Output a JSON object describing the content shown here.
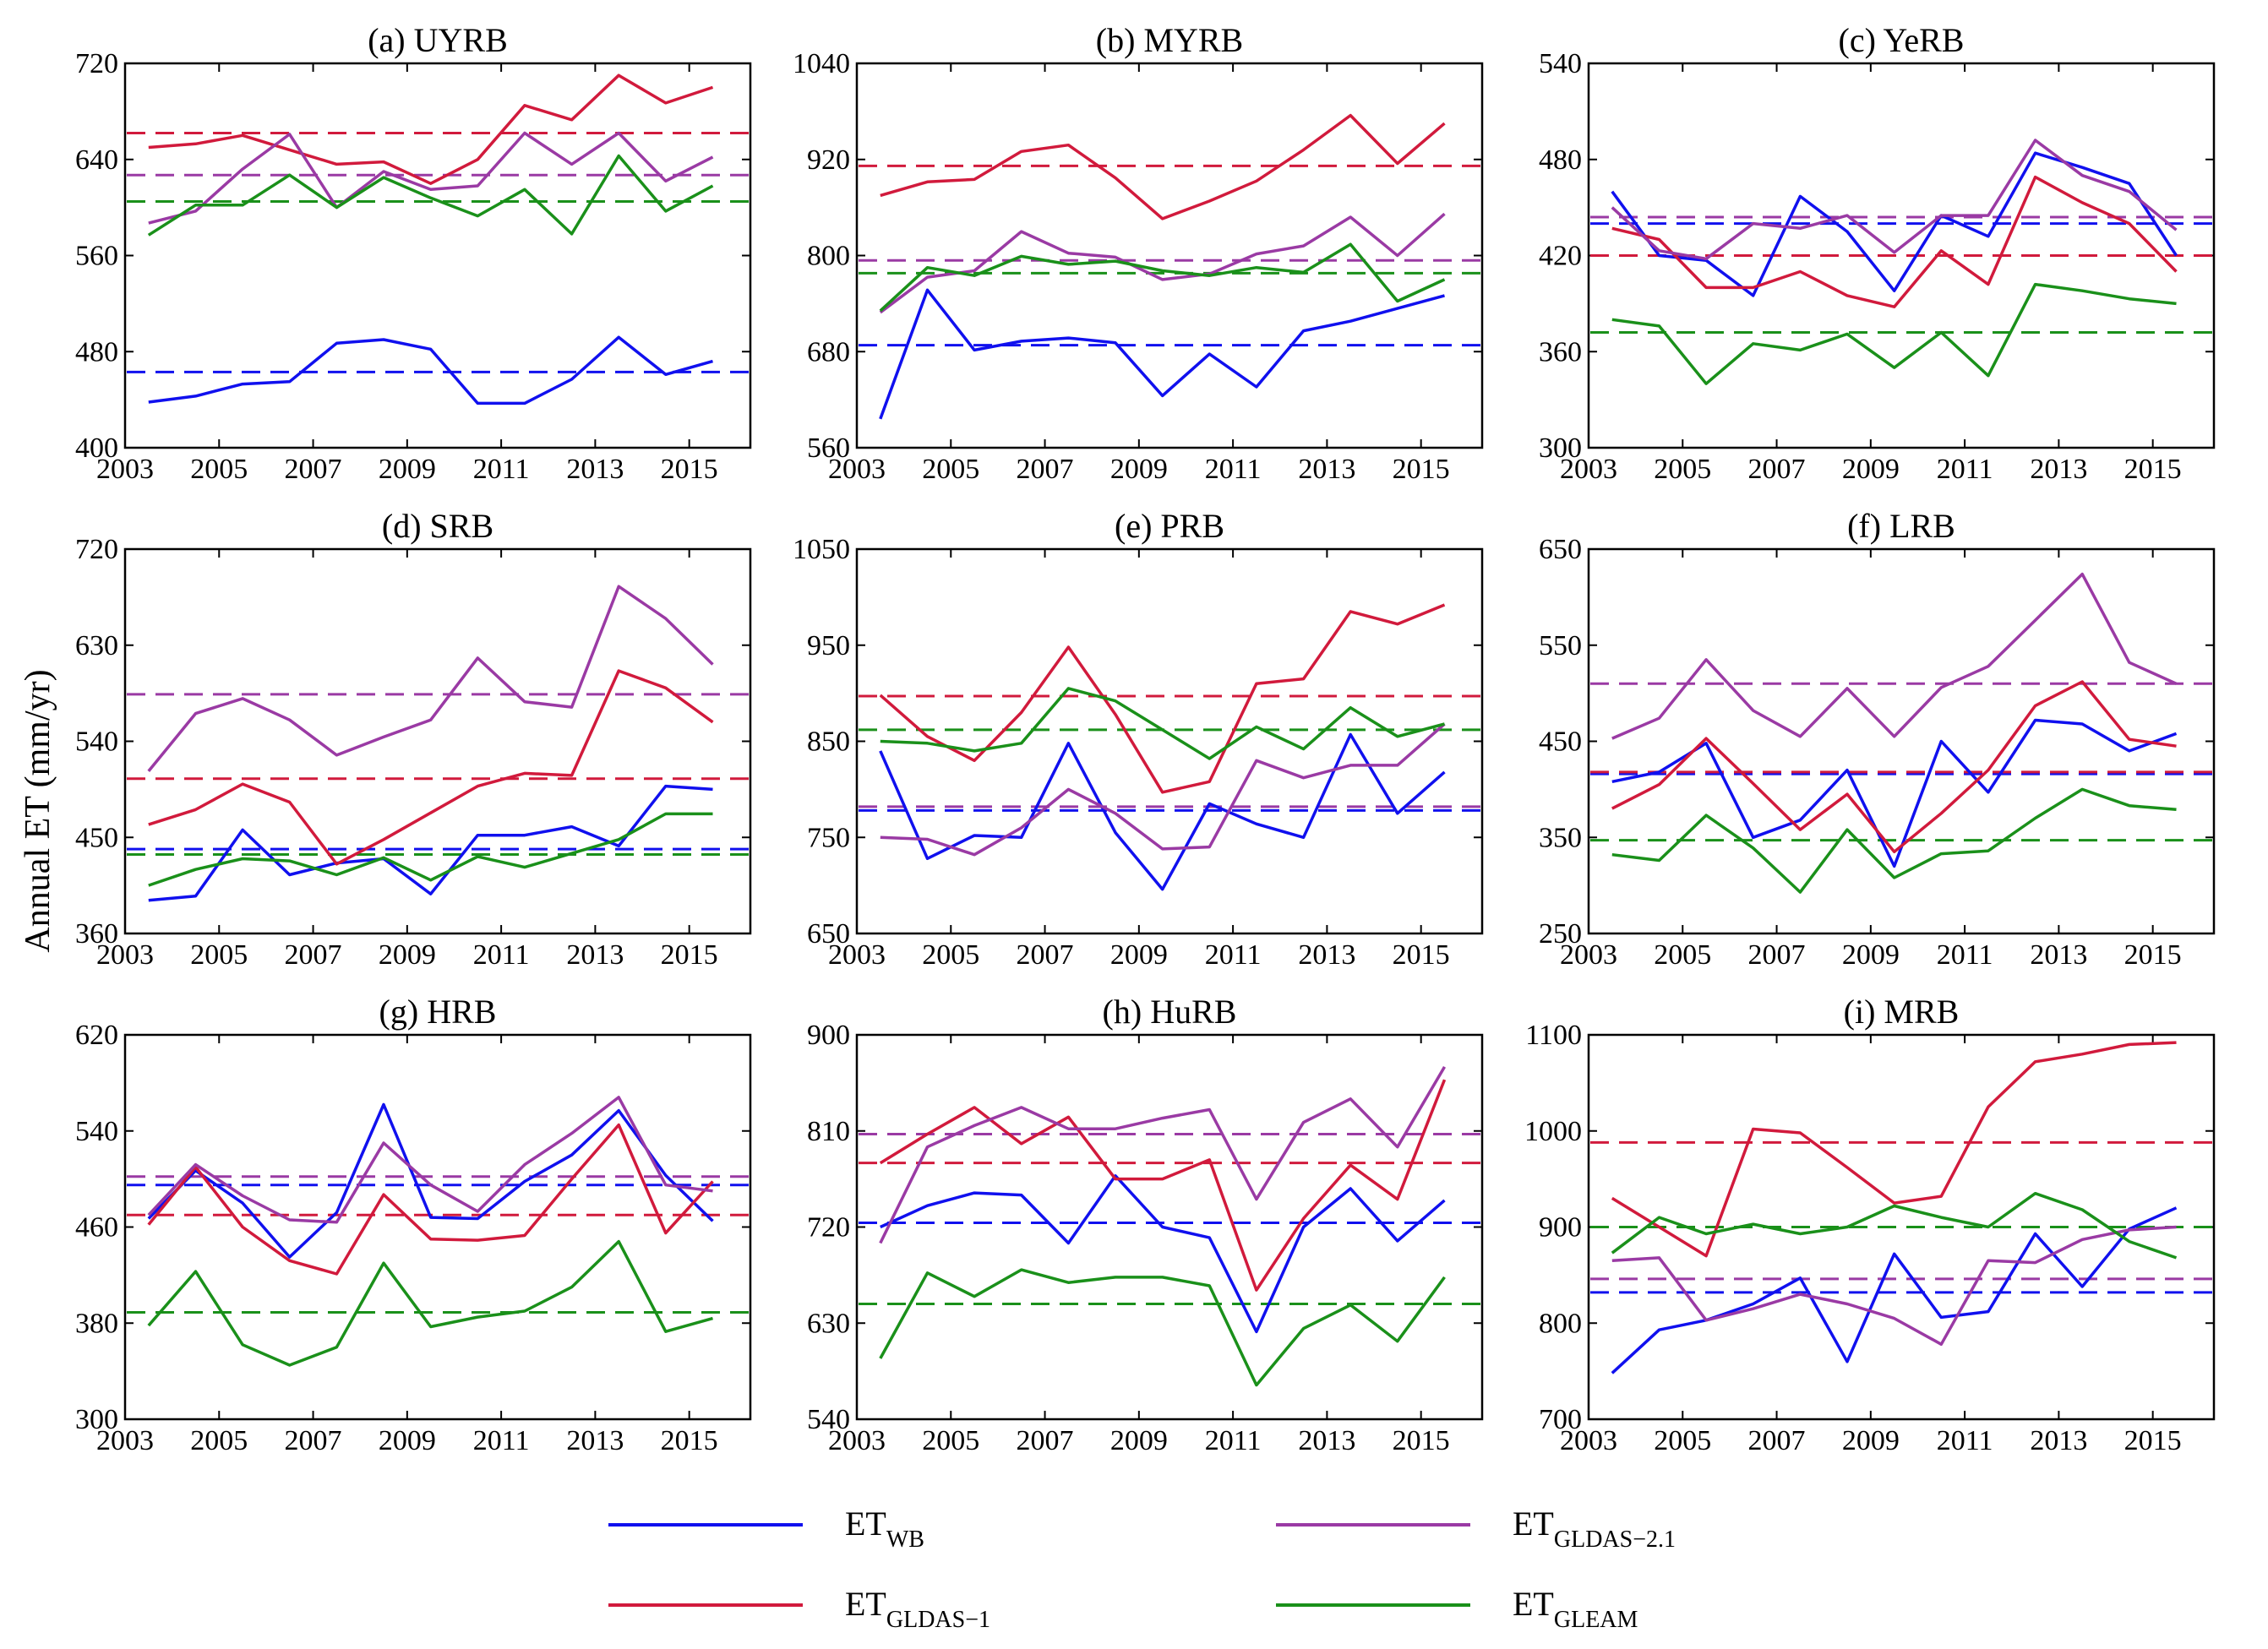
{
  "ylabel": "Annual ET (mm/yr)",
  "legend": [
    {
      "key": "wb",
      "base": "ET",
      "sub": "WB",
      "color": "#1010ee"
    },
    {
      "key": "gldas21",
      "base": "ET",
      "sub": "GLDAS−2.1",
      "color": "#9a3aa4"
    },
    {
      "key": "gldas1",
      "base": "ET",
      "sub": "GLDAS−1",
      "color": "#d11a3c"
    },
    {
      "key": "gleam",
      "base": "ET",
      "sub": "GLEAM",
      "color": "#1a901a"
    }
  ],
  "chart_data": [
    {
      "type": "line",
      "title": "(a) UYRB",
      "x": [
        2003.5,
        2004.5,
        2005.5,
        2006.5,
        2007.5,
        2008.5,
        2009.5,
        2010.5,
        2011.5,
        2012.5,
        2013.5,
        2014.5,
        2015.5
      ],
      "xticks": [
        2003,
        2005,
        2007,
        2009,
        2011,
        2013,
        2015
      ],
      "ylim": [
        400,
        720
      ],
      "yticks": [
        400,
        480,
        560,
        640,
        720
      ],
      "series": [
        {
          "key": "wb",
          "values": [
            438,
            443,
            453,
            455,
            487,
            490,
            482,
            437,
            437,
            457,
            492,
            461,
            472
          ],
          "mean": 463
        },
        {
          "key": "gldas1",
          "values": [
            650,
            653,
            660,
            648,
            636,
            638,
            620,
            640,
            685,
            673,
            710,
            687,
            700
          ],
          "mean": 662
        },
        {
          "key": "gldas21",
          "values": [
            587,
            597,
            632,
            661,
            600,
            630,
            615,
            618,
            662,
            636,
            662,
            622,
            642
          ],
          "mean": 627
        },
        {
          "key": "gleam",
          "values": [
            577,
            602,
            602,
            627,
            600,
            625,
            608,
            593,
            615,
            578,
            643,
            597,
            618
          ],
          "mean": 605
        }
      ]
    },
    {
      "type": "line",
      "title": "(b) MYRB",
      "x": [
        2003.5,
        2004.5,
        2005.5,
        2006.5,
        2007.5,
        2008.5,
        2009.5,
        2010.5,
        2011.5,
        2012.5,
        2013.5,
        2014.5,
        2015.5
      ],
      "xticks": [
        2003,
        2005,
        2007,
        2009,
        2011,
        2013,
        2015
      ],
      "ylim": [
        560,
        1040
      ],
      "yticks": [
        560,
        680,
        800,
        920,
        1040
      ],
      "series": [
        {
          "key": "wb",
          "values": [
            596,
            757,
            682,
            693,
            697,
            691,
            625,
            677,
            636,
            706,
            718,
            734,
            750
          ],
          "mean": 688
        },
        {
          "key": "gldas1",
          "values": [
            875,
            892,
            895,
            930,
            938,
            897,
            846,
            868,
            893,
            932,
            975,
            915,
            965
          ],
          "mean": 912
        },
        {
          "key": "gldas21",
          "values": [
            729,
            773,
            781,
            830,
            803,
            798,
            770,
            777,
            802,
            812,
            848,
            800,
            852
          ],
          "mean": 794
        },
        {
          "key": "gleam",
          "values": [
            731,
            785,
            775,
            799,
            789,
            793,
            781,
            775,
            785,
            779,
            814,
            743,
            770
          ],
          "mean": 778
        }
      ]
    },
    {
      "type": "line",
      "title": "(c) YeRB",
      "x": [
        2003.5,
        2004.5,
        2005.5,
        2006.5,
        2007.5,
        2008.5,
        2009.5,
        2010.5,
        2011.5,
        2012.5,
        2013.5,
        2014.5,
        2015.5
      ],
      "xticks": [
        2003,
        2005,
        2007,
        2009,
        2011,
        2013,
        2015
      ],
      "ylim": [
        300,
        540
      ],
      "yticks": [
        300,
        360,
        420,
        480,
        540
      ],
      "series": [
        {
          "key": "wb",
          "values": [
            460,
            420,
            417,
            395,
            457,
            435,
            398,
            445,
            432,
            484,
            475,
            465,
            420
          ],
          "mean": 440
        },
        {
          "key": "gldas1",
          "values": [
            437,
            430,
            400,
            400,
            410,
            395,
            388,
            423,
            402,
            469,
            453,
            440,
            410
          ],
          "mean": 420
        },
        {
          "key": "gldas21",
          "values": [
            450,
            423,
            418,
            440,
            437,
            445,
            422,
            445,
            445,
            492,
            470,
            460,
            436
          ],
          "mean": 444
        },
        {
          "key": "gleam",
          "values": [
            380,
            376,
            340,
            365,
            361,
            371,
            350,
            372,
            345,
            402,
            398,
            393,
            390
          ],
          "mean": 372
        }
      ]
    },
    {
      "type": "line",
      "title": "(d) SRB",
      "x": [
        2003.5,
        2004.5,
        2005.5,
        2006.5,
        2007.5,
        2008.5,
        2009.5,
        2010.5,
        2011.5,
        2012.5,
        2013.5,
        2014.5,
        2015.5
      ],
      "xticks": [
        2003,
        2005,
        2007,
        2009,
        2011,
        2013,
        2015
      ],
      "ylim": [
        360,
        720
      ],
      "yticks": [
        360,
        450,
        540,
        630,
        720
      ],
      "series": [
        {
          "key": "wb",
          "values": [
            391,
            395,
            457,
            415,
            426,
            430,
            397,
            452,
            452,
            460,
            442,
            498,
            495
          ],
          "mean": 439
        },
        {
          "key": "gldas1",
          "values": [
            462,
            476,
            500,
            483,
            425,
            448,
            473,
            498,
            510,
            508,
            606,
            590,
            558
          ],
          "mean": 505
        },
        {
          "key": "gldas21",
          "values": [
            512,
            566,
            580,
            560,
            527,
            544,
            560,
            618,
            577,
            572,
            685,
            655,
            612
          ],
          "mean": 584
        },
        {
          "key": "gleam",
          "values": [
            405,
            420,
            430,
            428,
            415,
            431,
            410,
            432,
            422,
            435,
            448,
            472,
            472
          ],
          "mean": 434
        }
      ]
    },
    {
      "type": "line",
      "title": "(e) PRB",
      "x": [
        2003.5,
        2004.5,
        2005.5,
        2006.5,
        2007.5,
        2008.5,
        2009.5,
        2010.5,
        2011.5,
        2012.5,
        2013.5,
        2014.5,
        2015.5
      ],
      "xticks": [
        2003,
        2005,
        2007,
        2009,
        2011,
        2013,
        2015
      ],
      "ylim": [
        650,
        1050
      ],
      "yticks": [
        650,
        750,
        850,
        950,
        1050
      ],
      "series": [
        {
          "key": "wb",
          "values": [
            840,
            728,
            752,
            750,
            848,
            755,
            696,
            785,
            764,
            750,
            857,
            775,
            818
          ],
          "mean": 778
        },
        {
          "key": "gldas1",
          "values": [
            898,
            855,
            830,
            880,
            948,
            878,
            797,
            808,
            910,
            915,
            985,
            972,
            992
          ],
          "mean": 897
        },
        {
          "key": "gldas21",
          "values": [
            750,
            748,
            732,
            760,
            800,
            775,
            738,
            740,
            830,
            812,
            825,
            825,
            868
          ],
          "mean": 782
        },
        {
          "key": "gleam",
          "values": [
            850,
            848,
            840,
            848,
            905,
            892,
            862,
            832,
            865,
            842,
            885,
            855,
            868
          ],
          "mean": 862
        }
      ]
    },
    {
      "type": "line",
      "title": "(f) LRB",
      "x": [
        2003.5,
        2004.5,
        2005.5,
        2006.5,
        2007.5,
        2008.5,
        2009.5,
        2010.5,
        2011.5,
        2012.5,
        2013.5,
        2014.5,
        2015.5
      ],
      "xticks": [
        2003,
        2005,
        2007,
        2009,
        2011,
        2013,
        2015
      ],
      "ylim": [
        250,
        650
      ],
      "yticks": [
        250,
        350,
        450,
        550,
        650
      ],
      "series": [
        {
          "key": "wb",
          "values": [
            408,
            418,
            448,
            350,
            368,
            420,
            320,
            450,
            397,
            472,
            468,
            440,
            458
          ],
          "mean": 416
        },
        {
          "key": "gldas1",
          "values": [
            380,
            405,
            453,
            406,
            358,
            395,
            335,
            375,
            420,
            487,
            512,
            452,
            445
          ],
          "mean": 418
        },
        {
          "key": "gldas21",
          "values": [
            453,
            474,
            535,
            482,
            455,
            505,
            455,
            506,
            528,
            576,
            624,
            532,
            510
          ],
          "mean": 510
        },
        {
          "key": "gleam",
          "values": [
            332,
            326,
            373,
            339,
            293,
            358,
            308,
            333,
            336,
            370,
            400,
            383,
            379
          ],
          "mean": 347
        }
      ]
    },
    {
      "type": "line",
      "title": "(g) HRB",
      "x": [
        2003.5,
        2004.5,
        2005.5,
        2006.5,
        2007.5,
        2008.5,
        2009.5,
        2010.5,
        2011.5,
        2012.5,
        2013.5,
        2014.5,
        2015.5
      ],
      "xticks": [
        2003,
        2005,
        2007,
        2009,
        2011,
        2013,
        2015
      ],
      "ylim": [
        300,
        620
      ],
      "yticks": [
        300,
        380,
        460,
        540,
        620
      ],
      "series": [
        {
          "key": "wb",
          "values": [
            467,
            507,
            480,
            435,
            472,
            562,
            468,
            467,
            498,
            520,
            557,
            503,
            465
          ],
          "mean": 495
        },
        {
          "key": "gldas1",
          "values": [
            462,
            510,
            460,
            432,
            421,
            487,
            450,
            449,
            453,
            500,
            545,
            455,
            498
          ],
          "mean": 470
        },
        {
          "key": "gldas21",
          "values": [
            470,
            512,
            486,
            466,
            464,
            530,
            495,
            473,
            512,
            538,
            568,
            495,
            490
          ],
          "mean": 502
        },
        {
          "key": "gleam",
          "values": [
            378,
            423,
            362,
            345,
            360,
            430,
            377,
            385,
            390,
            410,
            448,
            373,
            384
          ],
          "mean": 389
        }
      ]
    },
    {
      "type": "line",
      "title": "(h) HuRB",
      "x": [
        2003.5,
        2004.5,
        2005.5,
        2006.5,
        2007.5,
        2008.5,
        2009.5,
        2010.5,
        2011.5,
        2012.5,
        2013.5,
        2014.5,
        2015.5
      ],
      "xticks": [
        2003,
        2005,
        2007,
        2009,
        2011,
        2013,
        2015
      ],
      "ylim": [
        540,
        900
      ],
      "yticks": [
        540,
        630,
        720,
        810,
        900
      ],
      "series": [
        {
          "key": "wb",
          "values": [
            720,
            740,
            752,
            750,
            705,
            768,
            720,
            710,
            622,
            720,
            756,
            707,
            745
          ],
          "mean": 724
        },
        {
          "key": "gldas1",
          "values": [
            780,
            807,
            832,
            798,
            823,
            765,
            765,
            783,
            661,
            728,
            778,
            746,
            858
          ],
          "mean": 780
        },
        {
          "key": "gldas21",
          "values": [
            705,
            795,
            815,
            832,
            812,
            812,
            822,
            830,
            746,
            818,
            840,
            795,
            870
          ],
          "mean": 807
        },
        {
          "key": "gleam",
          "values": [
            597,
            677,
            655,
            680,
            668,
            673,
            673,
            665,
            572,
            625,
            647,
            613,
            673
          ],
          "mean": 648
        }
      ]
    },
    {
      "type": "line",
      "title": "(i) MRB",
      "x": [
        2003.5,
        2004.5,
        2005.5,
        2006.5,
        2007.5,
        2008.5,
        2009.5,
        2010.5,
        2011.5,
        2012.5,
        2013.5,
        2014.5,
        2015.5
      ],
      "xticks": [
        2003,
        2005,
        2007,
        2009,
        2011,
        2013,
        2015
      ],
      "ylim": [
        700,
        1100
      ],
      "yticks": [
        700,
        800,
        900,
        1000,
        1100
      ],
      "series": [
        {
          "key": "wb",
          "values": [
            748,
            793,
            803,
            820,
            847,
            760,
            872,
            806,
            812,
            893,
            838,
            898,
            920
          ],
          "mean": 832
        },
        {
          "key": "gldas1",
          "values": [
            930,
            900,
            870,
            1002,
            998,
            962,
            925,
            932,
            1025,
            1072,
            1080,
            1090,
            1092
          ],
          "mean": 988
        },
        {
          "key": "gldas21",
          "values": [
            865,
            868,
            803,
            815,
            830,
            820,
            805,
            778,
            865,
            863,
            887,
            897,
            900
          ],
          "mean": 846
        },
        {
          "key": "gleam",
          "values": [
            873,
            910,
            893,
            903,
            893,
            900,
            922,
            910,
            900,
            935,
            918,
            885,
            868
          ],
          "mean": 900
        }
      ]
    }
  ]
}
